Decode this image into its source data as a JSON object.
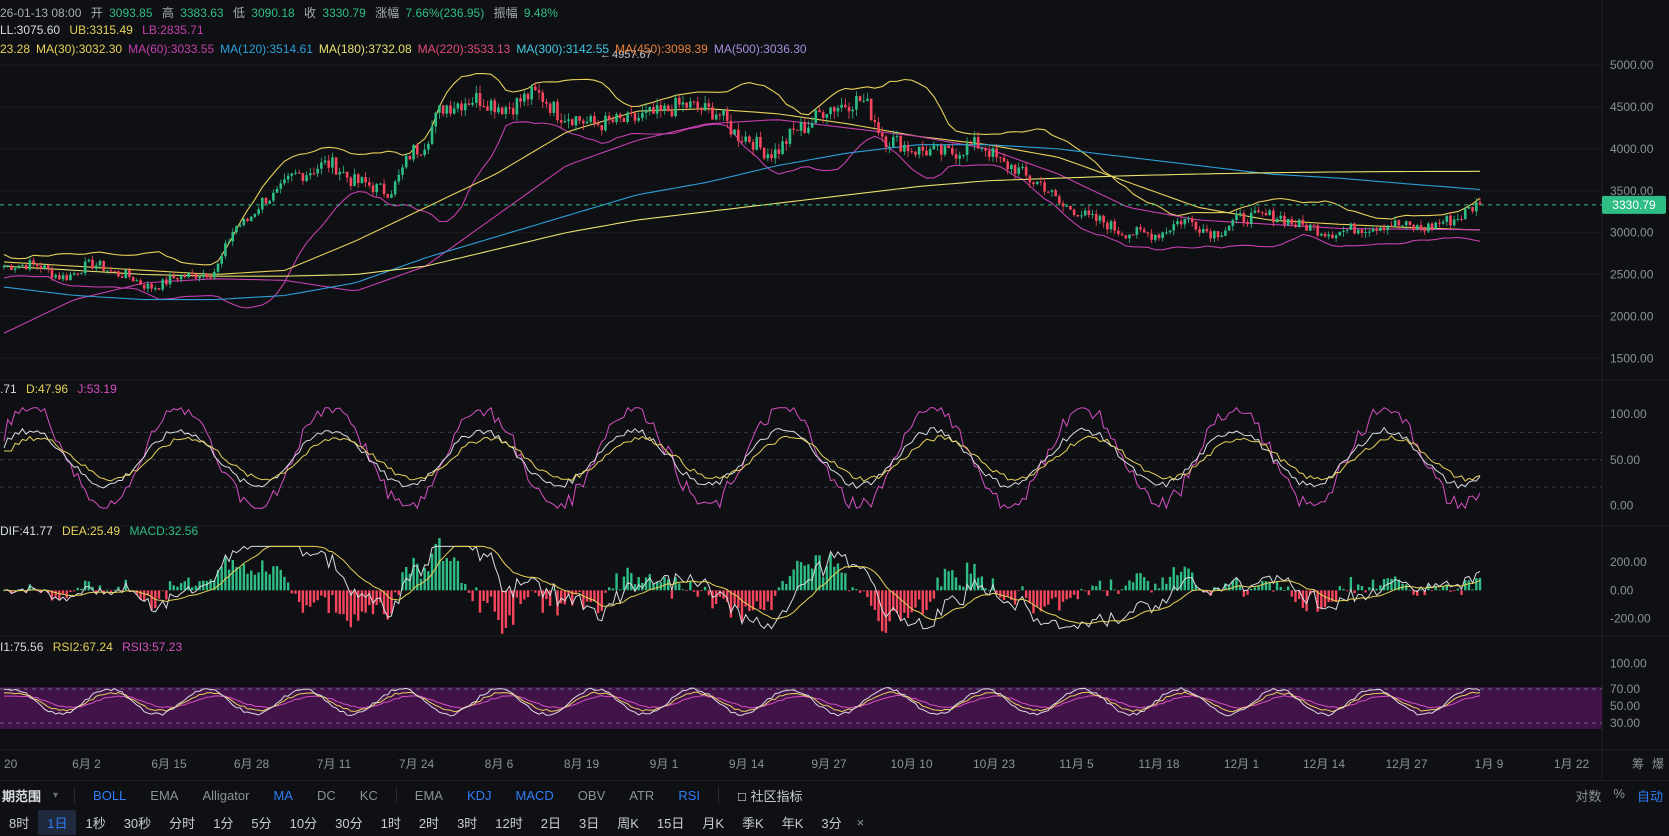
{
  "info": {
    "date": "26-01-13 08:00",
    "open_label": "开",
    "open": "3093.85",
    "high_label": "高",
    "high": "3383.63",
    "low_label": "低",
    "low": "3090.18",
    "close_label": "收",
    "close": "3330.79",
    "chg_label": "涨幅",
    "chg": "7.66%(236.95)",
    "amp_label": "振幅",
    "amp": "9.48%"
  },
  "boll": {
    "mid": "LL:3075.60",
    "ub": "UB:3315.49",
    "lb": "LB:2835.71"
  },
  "ma_row": [
    {
      "text": "23.28",
      "color": "#e6d15a"
    },
    {
      "text": "MA(30):3032.30",
      "color": "#e6d15a"
    },
    {
      "text": "MA(60):3033.55",
      "color": "#c53fae"
    },
    {
      "text": "MA(120):3514.61",
      "color": "#2d9fd8"
    },
    {
      "text": "MA(180):3732.08",
      "color": "#e8e070"
    },
    {
      "text": "MA(220):3533.13",
      "color": "#e04c7a"
    },
    {
      "text": "MA(300):3142.55",
      "color": "#43c7e3"
    },
    {
      "text": "MA(450):3098.39",
      "color": "#e8803b"
    },
    {
      "text": "MA(500):3036.30",
      "color": "#a98be0"
    }
  ],
  "peak_label": "4957.67",
  "price_axis": [
    "5000.00",
    "4500.00",
    "4000.00",
    "3500.00",
    "3000.00",
    "2500.00",
    "2000.00",
    "1500.00"
  ],
  "last_price": "3330.79",
  "kdj": {
    "k": ".71",
    "d": "D:47.96",
    "j": "J:53.19",
    "axis": [
      "100.00",
      "50.00",
      "0.00"
    ]
  },
  "macd": {
    "dif": "DIF:41.77",
    "dea": "DEA:25.49",
    "macd": "MACD:32.56",
    "axis": [
      "200.00",
      "0.00",
      "-200.00"
    ]
  },
  "rsi": {
    "r1": "I1:75.56",
    "r2": "RSI2:67.24",
    "r3": "RSI3:57.23",
    "axis": [
      "100.00",
      "70.00",
      "50.00",
      "30.00"
    ]
  },
  "x_dates": [
    "20",
    "6月 2",
    "6月 15",
    "6月 28",
    "7月 11",
    "7月 24",
    "8月 6",
    "8月 19",
    "9月 1",
    "9月 14",
    "9月 27",
    "10月 10",
    "10月 23",
    "11月 5",
    "11月 18",
    "12月 1",
    "12月 14",
    "12月 27",
    "1月 9",
    "1月 22"
  ],
  "x_axis_right": [
    "筹",
    "爆"
  ],
  "colors": {
    "up": "#2ebd85",
    "down": "#f6465d",
    "bg": "#0f1013",
    "accent": "#2f7df6"
  },
  "indicator_bar": {
    "range_label": "期范围",
    "main": [
      {
        "label": "BOLL",
        "active": true
      },
      {
        "label": "EMA",
        "active": false
      },
      {
        "label": "Alligator",
        "active": false
      },
      {
        "label": "MA",
        "active": true
      },
      {
        "label": "DC",
        "active": false
      },
      {
        "label": "KC",
        "active": false
      }
    ],
    "sub": [
      {
        "label": "EMA",
        "active": false
      },
      {
        "label": "KDJ",
        "active": true
      },
      {
        "label": "MACD",
        "active": true
      },
      {
        "label": "OBV",
        "active": false
      },
      {
        "label": "ATR",
        "active": false
      },
      {
        "label": "RSI",
        "active": true
      }
    ],
    "community": "社区指标",
    "log": "对数",
    "pct": "%",
    "auto": "自动"
  },
  "timeframes": [
    {
      "label": "8时",
      "active": false
    },
    {
      "label": "1日",
      "active": true
    },
    {
      "label": "1秒",
      "active": false
    },
    {
      "label": "30秒",
      "active": false
    },
    {
      "label": "分时",
      "active": false
    },
    {
      "label": "1分",
      "active": false
    },
    {
      "label": "5分",
      "active": false
    },
    {
      "label": "10分",
      "active": false
    },
    {
      "label": "30分",
      "active": false
    },
    {
      "label": "1时",
      "active": false
    },
    {
      "label": "2时",
      "active": false
    },
    {
      "label": "3时",
      "active": false
    },
    {
      "label": "12时",
      "active": false
    },
    {
      "label": "2日",
      "active": false
    },
    {
      "label": "3日",
      "active": false
    },
    {
      "label": "周K",
      "active": false
    },
    {
      "label": "15日",
      "active": false
    },
    {
      "label": "月K",
      "active": false
    },
    {
      "label": "季K",
      "active": false
    },
    {
      "label": "年K",
      "active": false
    },
    {
      "label": "3分",
      "active": false
    }
  ],
  "chart_data": [
    {
      "type": "candlestick",
      "title": "",
      "y_ticks": [
        5000,
        4500,
        4000,
        3500,
        3000,
        2500,
        2000,
        1500
      ],
      "ylim": [
        1300,
        5300
      ],
      "x_tick_labels": [
        "20",
        "6月 2",
        "6月 15",
        "6月 28",
        "7月 11",
        "7月 24",
        "8月 6",
        "8月 19",
        "9月 1",
        "9月 14",
        "9月 27",
        "10月 10",
        "10月 23",
        "11月 5",
        "11月 18",
        "12月 1",
        "12月 14",
        "12月 27",
        "1月 9",
        "1月 22"
      ],
      "anchors_close": [
        [
          0,
          2600
        ],
        [
          8,
          2620
        ],
        [
          16,
          2470
        ],
        [
          24,
          2620
        ],
        [
          32,
          2500
        ],
        [
          40,
          2350
        ],
        [
          48,
          2480
        ],
        [
          56,
          2520
        ],
        [
          64,
          3100
        ],
        [
          72,
          3420
        ],
        [
          80,
          3700
        ],
        [
          88,
          3820
        ],
        [
          96,
          3600
        ],
        [
          104,
          3500
        ],
        [
          112,
          4000
        ],
        [
          120,
          4520
        ],
        [
          128,
          4600
        ],
        [
          136,
          4500
        ],
        [
          144,
          4650
        ],
        [
          152,
          4400
        ],
        [
          160,
          4300
        ],
        [
          168,
          4330
        ],
        [
          176,
          4410
        ],
        [
          184,
          4520
        ],
        [
          192,
          4450
        ],
        [
          200,
          4150
        ],
        [
          208,
          3950
        ],
        [
          216,
          4250
        ],
        [
          224,
          4500
        ],
        [
          232,
          4580
        ],
        [
          240,
          4100
        ],
        [
          248,
          3980
        ],
        [
          256,
          3950
        ],
        [
          264,
          4050
        ],
        [
          272,
          3800
        ],
        [
          280,
          3600
        ],
        [
          288,
          3300
        ],
        [
          296,
          3150
        ],
        [
          304,
          3000
        ],
        [
          312,
          2980
        ],
        [
          320,
          3150
        ],
        [
          328,
          3000
        ],
        [
          336,
          3180
        ],
        [
          344,
          3200
        ],
        [
          352,
          3080
        ],
        [
          360,
          3000
        ],
        [
          368,
          3060
        ],
        [
          376,
          3100
        ],
        [
          384,
          3050
        ],
        [
          392,
          3150
        ],
        [
          400,
          3330
        ]
      ],
      "ma_series_approx": [
        {
          "name": "MA(30)",
          "color": "#e6d15a",
          "values": [
            2650,
            2600,
            2550,
            2500,
            2550,
            2900,
            3300,
            3700,
            4200,
            4450,
            4480,
            4420,
            4300,
            4150,
            4050,
            3900,
            3600,
            3300,
            3150,
            3100,
            3060,
            3032
          ]
        },
        {
          "name": "MA(60)",
          "color": "#c53fae",
          "values": [
            1800,
            2200,
            2400,
            2450,
            2430,
            2300,
            2600,
            3200,
            3800,
            4100,
            4300,
            4350,
            4250,
            4150,
            4000,
            3700,
            3300,
            3150,
            3100,
            3050,
            3040,
            3034
          ]
        },
        {
          "name": "MA(120)",
          "color": "#2d9fd8",
          "values": [
            2350,
            2250,
            2200,
            2200,
            2250,
            2400,
            2700,
            2950,
            3200,
            3450,
            3600,
            3800,
            3950,
            4050,
            4050,
            4000,
            3900,
            3800,
            3700,
            3650,
            3580,
            3515
          ]
        },
        {
          "name": "MA(180)",
          "color": "#e8e070",
          "values": [
            2600,
            2550,
            2500,
            2480,
            2480,
            2500,
            2600,
            2800,
            3000,
            3150,
            3250,
            3350,
            3450,
            3550,
            3620,
            3650,
            3680,
            3700,
            3715,
            3725,
            3730,
            3732
          ]
        }
      ],
      "boll": {
        "mid": 3075.6,
        "ub": 3315.49,
        "lb": 2835.71
      },
      "last": 3330.79
    },
    {
      "type": "line",
      "title": "",
      "series_names": [
        "K",
        "D",
        "J"
      ],
      "y_ticks": [
        100,
        50,
        0
      ],
      "ylim": [
        -5,
        110
      ],
      "levels": [
        80,
        50,
        20
      ],
      "last": {
        "D": 47.96,
        "J": 53.19
      }
    },
    {
      "type": "bar",
      "title": "",
      "series_names": [
        "DIF",
        "DEA",
        "MACD"
      ],
      "y_ticks": [
        200,
        0,
        -200
      ],
      "ylim": [
        -280,
        320
      ],
      "last": {
        "DIF": 41.77,
        "DEA": 25.49,
        "MACD": 32.56
      }
    },
    {
      "type": "line",
      "title": "",
      "series_names": [
        "RSI1",
        "RSI2",
        "RSI3"
      ],
      "y_ticks": [
        100,
        70,
        50,
        30
      ],
      "ylim": [
        10,
        110
      ],
      "band": [
        30,
        70
      ],
      "last": {
        "RSI1": 75.56,
        "RSI2": 67.24,
        "RSI3": 57.23
      }
    }
  ]
}
